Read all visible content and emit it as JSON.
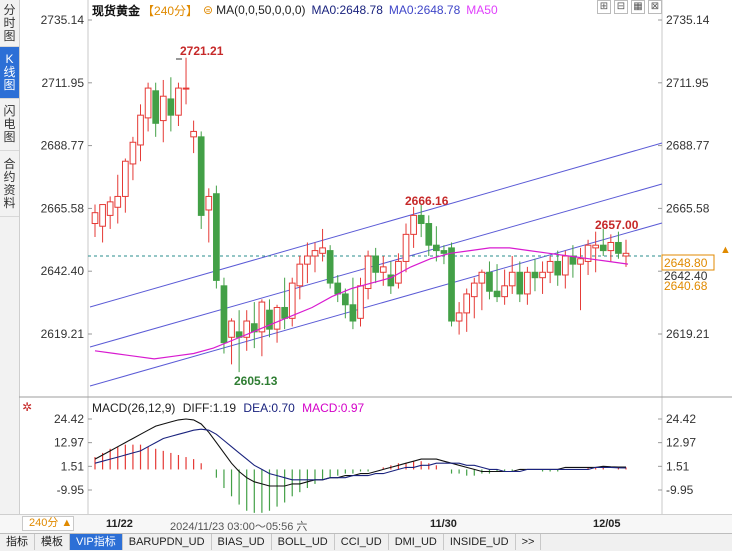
{
  "left_tabs": [
    {
      "label": "分时图",
      "active": false
    },
    {
      "label": "K线图",
      "active": true
    },
    {
      "label": "闪电图",
      "active": false
    },
    {
      "label": "合约资料",
      "active": false
    }
  ],
  "header": {
    "title": "现货黄金",
    "period": "【240分】",
    "gear": "⊜",
    "ma_params": "MA(0,0,50,0,0,0)",
    "ma0_a": "MA0:2648.78",
    "ma0_b": "MA0:2648.78",
    "ma50": "MA50"
  },
  "top_icons": [
    "⊞",
    "⊟",
    "▦",
    "⊠"
  ],
  "price_axis": {
    "left_ticks": [
      "2735.14",
      "2711.95",
      "2688.77",
      "2665.58",
      "2642.40",
      "2619.21"
    ],
    "right_ticks": [
      "2735.14",
      "2711.95",
      "2688.77",
      "2665.58",
      "2642.40",
      "2619.21"
    ],
    "tick_values": [
      2735.14,
      2711.95,
      2688.77,
      2665.58,
      2642.4,
      2619.21
    ],
    "current_price": "2648.80",
    "current_price_value": 2648.8,
    "second_price": "2640.68",
    "hidden_tick": "2642.40"
  },
  "annotations": {
    "high": "2721.21",
    "low": "2605.13",
    "mid_high": "2666.16",
    "right_high": "2657.00"
  },
  "macd": {
    "title": "MACD(26,12,9)",
    "diff": "DIFF:1.19",
    "dea": "DEA:0.70",
    "macd": "MACD:0.97",
    "left_ticks": [
      "24.42",
      "12.97",
      "1.51",
      "-9.95"
    ],
    "right_ticks": [
      "24.42",
      "12.97",
      "1.51",
      "-9.95"
    ],
    "tick_values": [
      24.42,
      12.97,
      1.51,
      -9.95
    ]
  },
  "timebar": {
    "period_button": "240分 ▲",
    "labels": [
      "11/22",
      "11/30",
      "12/05"
    ],
    "cursor": "2024/11/23 03:00～05:56 六"
  },
  "bottom_tabs": [
    {
      "label": "指标",
      "active": false
    },
    {
      "label": "模板",
      "active": false
    },
    {
      "label": "VIP指标",
      "active": true
    },
    {
      "label": "BARUPDN_UD",
      "active": false
    },
    {
      "label": "BIAS_UD",
      "active": false
    },
    {
      "label": "BOLL_UD",
      "active": false
    },
    {
      "label": "CCI_UD",
      "active": false
    },
    {
      "label": "DMI_UD",
      "active": false
    },
    {
      "label": "INSIDE_UD",
      "active": false
    },
    {
      "label": ">>",
      "active": false
    }
  ],
  "colors": {
    "up": "#e53935",
    "down": "#43a047",
    "ma50": "#d81bd0",
    "channel": "#5b5bd6",
    "diff": "#111111",
    "dea": "#1a237e",
    "current_price_line": "#2a8c8c",
    "current_tag": "#e08a00"
  },
  "chart_data": {
    "type": "candlestick",
    "price_range": [
      2595,
      2742
    ],
    "candles": [
      {
        "o": 2660,
        "h": 2667,
        "l": 2655,
        "c": 2664
      },
      {
        "o": 2659,
        "h": 2666,
        "l": 2653,
        "c": 2667
      },
      {
        "o": 2663,
        "h": 2670,
        "l": 2658,
        "c": 2668
      },
      {
        "o": 2666,
        "h": 2678,
        "l": 2660,
        "c": 2670
      },
      {
        "o": 2670,
        "h": 2684,
        "l": 2664,
        "c": 2683
      },
      {
        "o": 2682,
        "h": 2692,
        "l": 2676,
        "c": 2690
      },
      {
        "o": 2689,
        "h": 2704,
        "l": 2683,
        "c": 2700
      },
      {
        "o": 2699,
        "h": 2712,
        "l": 2694,
        "c": 2710
      },
      {
        "o": 2709,
        "h": 2712,
        "l": 2692,
        "c": 2697
      },
      {
        "o": 2698,
        "h": 2713,
        "l": 2690,
        "c": 2707
      },
      {
        "o": 2706,
        "h": 2714,
        "l": 2694,
        "c": 2700
      },
      {
        "o": 2700,
        "h": 2712,
        "l": 2696,
        "c": 2710
      },
      {
        "o": 2710,
        "h": 2721.21,
        "l": 2704,
        "c": 2710
      },
      {
        "o": 2692,
        "h": 2698,
        "l": 2686,
        "c": 2694
      },
      {
        "o": 2692,
        "h": 2694,
        "l": 2658,
        "c": 2663
      },
      {
        "o": 2665,
        "h": 2673,
        "l": 2653,
        "c": 2670
      },
      {
        "o": 2671,
        "h": 2674,
        "l": 2636,
        "c": 2639
      },
      {
        "o": 2637,
        "h": 2640,
        "l": 2612,
        "c": 2616
      },
      {
        "o": 2618,
        "h": 2625,
        "l": 2608,
        "c": 2624
      },
      {
        "o": 2620,
        "h": 2628,
        "l": 2605.13,
        "c": 2618
      },
      {
        "o": 2618,
        "h": 2628,
        "l": 2613,
        "c": 2624
      },
      {
        "o": 2623,
        "h": 2631,
        "l": 2614,
        "c": 2620
      },
      {
        "o": 2620,
        "h": 2632,
        "l": 2611,
        "c": 2631
      },
      {
        "o": 2628,
        "h": 2632,
        "l": 2618,
        "c": 2621
      },
      {
        "o": 2621,
        "h": 2630,
        "l": 2616,
        "c": 2629
      },
      {
        "o": 2629,
        "h": 2640,
        "l": 2621,
        "c": 2625
      },
      {
        "o": 2625,
        "h": 2640,
        "l": 2622,
        "c": 2638
      },
      {
        "o": 2637,
        "h": 2648,
        "l": 2632,
        "c": 2645
      },
      {
        "o": 2645,
        "h": 2653,
        "l": 2638,
        "c": 2648
      },
      {
        "o": 2648,
        "h": 2653,
        "l": 2642,
        "c": 2650
      },
      {
        "o": 2649,
        "h": 2658,
        "l": 2646,
        "c": 2651
      },
      {
        "o": 2650,
        "h": 2652,
        "l": 2636,
        "c": 2638
      },
      {
        "o": 2638,
        "h": 2641,
        "l": 2631,
        "c": 2634
      },
      {
        "o": 2634,
        "h": 2636,
        "l": 2625,
        "c": 2630
      },
      {
        "o": 2630,
        "h": 2640,
        "l": 2621,
        "c": 2624
      },
      {
        "o": 2625,
        "h": 2640,
        "l": 2622,
        "c": 2637
      },
      {
        "o": 2636,
        "h": 2650,
        "l": 2632,
        "c": 2648
      },
      {
        "o": 2648,
        "h": 2651,
        "l": 2638,
        "c": 2642
      },
      {
        "o": 2642,
        "h": 2648,
        "l": 2637,
        "c": 2644
      },
      {
        "o": 2641,
        "h": 2646,
        "l": 2634,
        "c": 2637
      },
      {
        "o": 2638,
        "h": 2649,
        "l": 2636,
        "c": 2646
      },
      {
        "o": 2646,
        "h": 2660,
        "l": 2642,
        "c": 2656
      },
      {
        "o": 2656,
        "h": 2666.16,
        "l": 2651,
        "c": 2663
      },
      {
        "o": 2663,
        "h": 2667,
        "l": 2655,
        "c": 2660
      },
      {
        "o": 2660,
        "h": 2663,
        "l": 2648,
        "c": 2652
      },
      {
        "o": 2652,
        "h": 2659,
        "l": 2646,
        "c": 2650
      },
      {
        "o": 2650,
        "h": 2652,
        "l": 2645,
        "c": 2649
      },
      {
        "o": 2651,
        "h": 2653,
        "l": 2622,
        "c": 2624
      },
      {
        "o": 2624,
        "h": 2631,
        "l": 2619,
        "c": 2627
      },
      {
        "o": 2627,
        "h": 2636,
        "l": 2620,
        "c": 2634
      },
      {
        "o": 2633,
        "h": 2640,
        "l": 2625,
        "c": 2638
      },
      {
        "o": 2638,
        "h": 2643,
        "l": 2628,
        "c": 2642
      },
      {
        "o": 2642,
        "h": 2646,
        "l": 2632,
        "c": 2635
      },
      {
        "o": 2635,
        "h": 2645,
        "l": 2631,
        "c": 2633
      },
      {
        "o": 2633,
        "h": 2643,
        "l": 2630,
        "c": 2637
      },
      {
        "o": 2637,
        "h": 2648,
        "l": 2634,
        "c": 2642
      },
      {
        "o": 2642,
        "h": 2646,
        "l": 2631,
        "c": 2634
      },
      {
        "o": 2634,
        "h": 2644,
        "l": 2630,
        "c": 2642
      },
      {
        "o": 2642,
        "h": 2647,
        "l": 2635,
        "c": 2640
      },
      {
        "o": 2640,
        "h": 2646,
        "l": 2634,
        "c": 2642
      },
      {
        "o": 2642,
        "h": 2648,
        "l": 2638,
        "c": 2646
      },
      {
        "o": 2646,
        "h": 2650,
        "l": 2637,
        "c": 2641
      },
      {
        "o": 2641,
        "h": 2650,
        "l": 2636,
        "c": 2648
      },
      {
        "o": 2648,
        "h": 2652,
        "l": 2640,
        "c": 2645
      },
      {
        "o": 2645,
        "h": 2651,
        "l": 2628,
        "c": 2647
      },
      {
        "o": 2646,
        "h": 2654,
        "l": 2641,
        "c": 2652
      },
      {
        "o": 2651,
        "h": 2657,
        "l": 2642,
        "c": 2652
      },
      {
        "o": 2652,
        "h": 2658,
        "l": 2648,
        "c": 2650
      },
      {
        "o": 2650,
        "h": 2656,
        "l": 2646,
        "c": 2653
      },
      {
        "o": 2653,
        "h": 2657,
        "l": 2647,
        "c": 2649
      },
      {
        "o": 2648,
        "h": 2654,
        "l": 2644,
        "c": 2649
      }
    ],
    "ma50": [
      2613,
      2612,
      2611,
      2610,
      2611,
      2612,
      2614,
      2617,
      2620,
      2623,
      2626,
      2629,
      2633,
      2636,
      2638,
      2640,
      2644,
      2647,
      2649,
      2650,
      2651,
      2651,
      2650,
      2649,
      2648,
      2647,
      2646,
      2645
    ],
    "macd_range": [
      -22,
      30
    ],
    "macd_hist": [
      6,
      8,
      10,
      11,
      12,
      12,
      12,
      11,
      10,
      9,
      8,
      7,
      6,
      5,
      3,
      0,
      -4,
      -9,
      -13,
      -17,
      -20,
      -21,
      -21,
      -20,
      -18,
      -16,
      -13,
      -11,
      -9,
      -7,
      -5,
      -4,
      -3,
      -2,
      -2,
      -1,
      -1,
      0,
      1,
      2,
      3,
      3,
      4,
      4,
      3,
      2,
      0,
      -2,
      -2,
      -3,
      -3,
      -2,
      -2,
      -1,
      -1,
      -1,
      0,
      0,
      0,
      -1,
      -1,
      -1,
      0,
      0,
      0,
      1,
      1,
      1,
      0,
      1,
      1
    ],
    "diff": [
      5,
      7,
      9,
      11,
      13,
      15,
      17,
      19,
      21,
      22,
      23,
      24,
      24.4,
      24,
      22,
      18,
      13,
      8,
      3,
      -1,
      -4,
      -6,
      -7,
      -8,
      -8,
      -8,
      -7,
      -7,
      -6,
      -5,
      -5,
      -4,
      -4,
      -3,
      -3,
      -2,
      -2,
      -1,
      0,
      1,
      2,
      3,
      4,
      5,
      5,
      5,
      4,
      3,
      2,
      1,
      0,
      -1,
      -1,
      -1,
      -1,
      -1,
      0,
      0,
      0,
      0,
      0,
      0,
      1,
      1,
      1,
      1,
      1,
      1.5,
      1.3,
      1.2,
      1.19
    ],
    "dea": [
      3,
      4,
      5,
      6,
      7,
      8,
      9,
      11,
      13,
      15,
      16,
      17,
      18,
      19,
      19.5,
      19,
      17,
      14,
      11,
      8,
      5,
      2,
      0,
      -2,
      -3,
      -4,
      -5,
      -5,
      -5,
      -5,
      -5,
      -4,
      -4,
      -4,
      -3,
      -3,
      -3,
      -2,
      -2,
      -1,
      0,
      1,
      1,
      2,
      2,
      3,
      3,
      3,
      3,
      2,
      2,
      1,
      0,
      0,
      -1,
      -1,
      -1,
      0,
      0,
      0,
      0,
      0,
      0,
      0,
      0,
      0,
      1,
      1,
      1,
      0.8,
      0.7
    ]
  }
}
